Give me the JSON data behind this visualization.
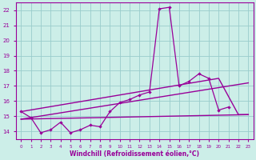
{
  "xlabel": "Windchill (Refroidissement éolien,°C)",
  "bg_color": "#cceee8",
  "line_color": "#990099",
  "grid_color": "#99cccc",
  "xlim": [
    -0.5,
    23.5
  ],
  "ylim": [
    13.5,
    22.5
  ],
  "yticks": [
    14,
    15,
    16,
    17,
    18,
    19,
    20,
    21,
    22
  ],
  "xticks": [
    0,
    1,
    2,
    3,
    4,
    5,
    6,
    7,
    8,
    9,
    10,
    11,
    12,
    13,
    14,
    15,
    16,
    17,
    18,
    19,
    20,
    21,
    22,
    23
  ],
  "series": [
    {
      "x": [
        0,
        1,
        2,
        3,
        4,
        5,
        6,
        7,
        8,
        9,
        10,
        11,
        12,
        13,
        14,
        15,
        16,
        17,
        18,
        19,
        20,
        21
      ],
      "y": [
        15.3,
        14.9,
        13.9,
        14.1,
        14.6,
        13.9,
        14.1,
        14.4,
        14.3,
        15.3,
        15.9,
        16.1,
        16.4,
        16.6,
        22.1,
        22.2,
        17.0,
        17.3,
        17.8,
        17.5,
        15.4,
        15.6
      ],
      "marker": true,
      "lw": 0.9
    },
    {
      "x": [
        0,
        20,
        22,
        23
      ],
      "y": [
        15.3,
        17.5,
        15.1,
        15.1
      ],
      "marker": false,
      "lw": 1.0
    },
    {
      "x": [
        0,
        23
      ],
      "y": [
        14.8,
        17.2
      ],
      "marker": false,
      "lw": 1.0
    },
    {
      "x": [
        0,
        23
      ],
      "y": [
        14.8,
        15.1
      ],
      "marker": false,
      "lw": 1.0
    }
  ]
}
